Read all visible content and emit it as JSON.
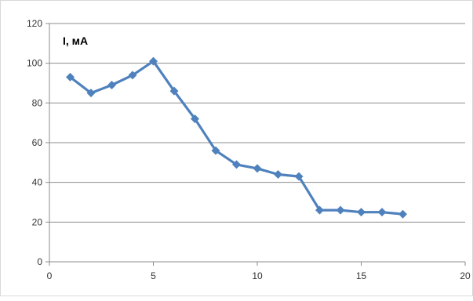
{
  "chart_data": {
    "type": "scatter",
    "mode": "lines+markers",
    "title": "",
    "xlabel": "",
    "ylabel": "I, мА",
    "xlim": [
      0,
      20
    ],
    "ylim": [
      0,
      120
    ],
    "x_ticks": [
      0,
      5,
      10,
      15,
      20
    ],
    "y_ticks": [
      0,
      20,
      40,
      60,
      80,
      100,
      120
    ],
    "grid": {
      "horizontal": true,
      "vertical": false
    },
    "legend": "none",
    "series": [
      {
        "color": "#4f81bd",
        "marker": "diamond",
        "x": [
          1,
          2,
          3,
          4,
          5,
          6,
          7,
          8,
          9,
          10,
          11,
          12,
          13,
          14,
          15,
          16,
          17
        ],
        "y": [
          93,
          85,
          89,
          94,
          101,
          86,
          72,
          56,
          49,
          47,
          44,
          43,
          26,
          26,
          25,
          25,
          24
        ]
      }
    ]
  }
}
